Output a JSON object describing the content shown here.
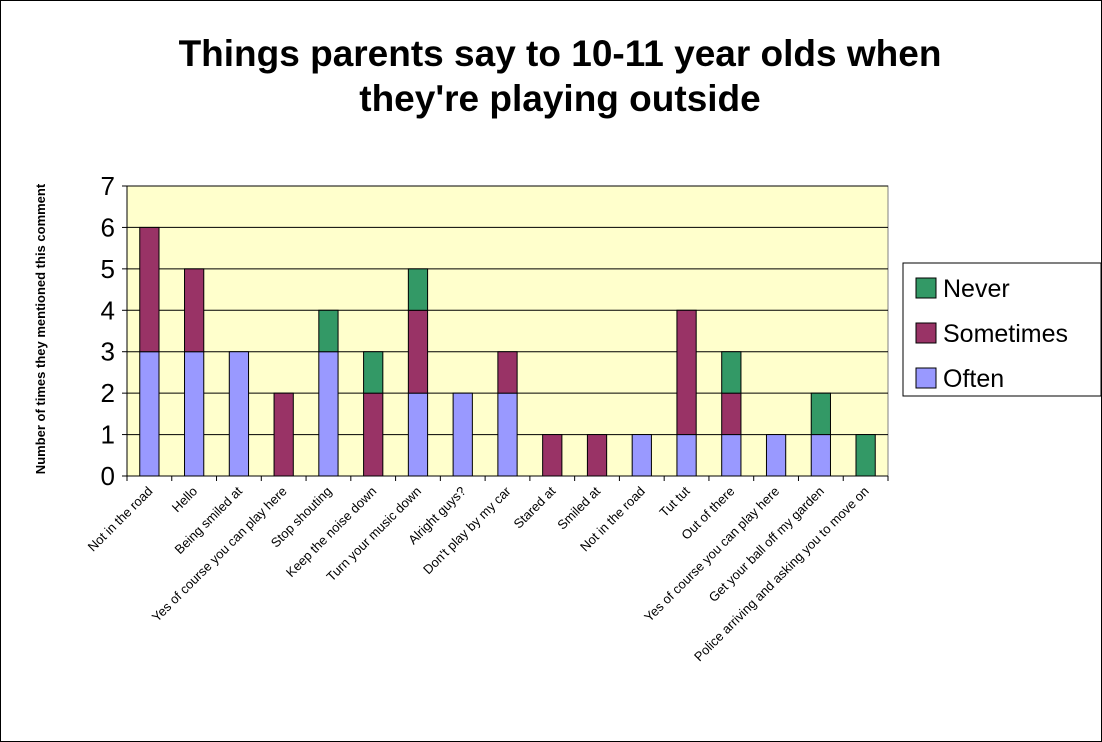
{
  "chart_data": {
    "type": "bar",
    "stacked": true,
    "title_lines": [
      "Things parents say to 10-11 year olds when",
      "they're playing outside"
    ],
    "xlabel": "",
    "ylabel": "Number of times they mentioned this comment",
    "ylim": [
      0,
      7
    ],
    "yticks": [
      "0",
      "1",
      "2",
      "3",
      "4",
      "5",
      "6",
      "7"
    ],
    "grid": true,
    "legend_position": "right",
    "plot_background": "#FFFFCC",
    "categories": [
      "Not in the road",
      "Hello",
      "Being smiled at",
      "Yes of course you can play here",
      "Stop shouting",
      "Keep the noise down",
      "Turn your music down",
      "Alright guys?",
      "Don't play by my car",
      "Stared at",
      "Smiled at",
      "Not in the road",
      "Tut tut",
      "Out of there",
      "Yes of course you can play here",
      "Get your ball off my garden",
      "Police arriving and asking you to move on"
    ],
    "series": [
      {
        "name": "Often",
        "color": "#9999FF",
        "values": [
          3,
          3,
          3,
          0,
          3,
          0,
          2,
          2,
          2,
          0,
          0,
          1,
          1,
          1,
          1,
          1,
          0
        ]
      },
      {
        "name": "Sometimes",
        "color": "#993366",
        "values": [
          3,
          2,
          0,
          2,
          0,
          2,
          2,
          0,
          1,
          1,
          1,
          0,
          3,
          1,
          0,
          0,
          0
        ]
      },
      {
        "name": "Never",
        "color": "#339966",
        "values": [
          0,
          0,
          0,
          0,
          1,
          1,
          1,
          0,
          0,
          0,
          0,
          0,
          0,
          1,
          0,
          1,
          1
        ]
      }
    ],
    "legend_order": [
      "Never",
      "Sometimes",
      "Often"
    ]
  }
}
